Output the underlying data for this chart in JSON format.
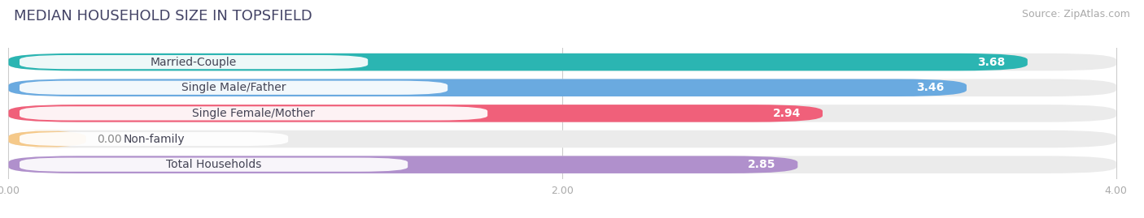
{
  "title": "MEDIAN HOUSEHOLD SIZE IN TOPSFIELD",
  "source": "Source: ZipAtlas.com",
  "categories": [
    "Married-Couple",
    "Single Male/Father",
    "Single Female/Mother",
    "Non-family",
    "Total Households"
  ],
  "values": [
    3.68,
    3.46,
    2.94,
    0.0,
    2.85
  ],
  "bar_colors": [
    "#2bb5b2",
    "#6aaae0",
    "#f0607a",
    "#f5c98a",
    "#b090cc"
  ],
  "bar_bg_colors": [
    "#ebebeb",
    "#ebebeb",
    "#ebebeb",
    "#ebebeb",
    "#ebebeb"
  ],
  "xlim": [
    0,
    4.0
  ],
  "xticks": [
    0.0,
    2.0,
    4.0
  ],
  "xtick_labels": [
    "0.00",
    "2.00",
    "4.00"
  ],
  "title_fontsize": 13,
  "source_fontsize": 9,
  "label_fontsize": 10,
  "value_fontsize": 10,
  "background_color": "#ffffff",
  "title_color": "#444466"
}
